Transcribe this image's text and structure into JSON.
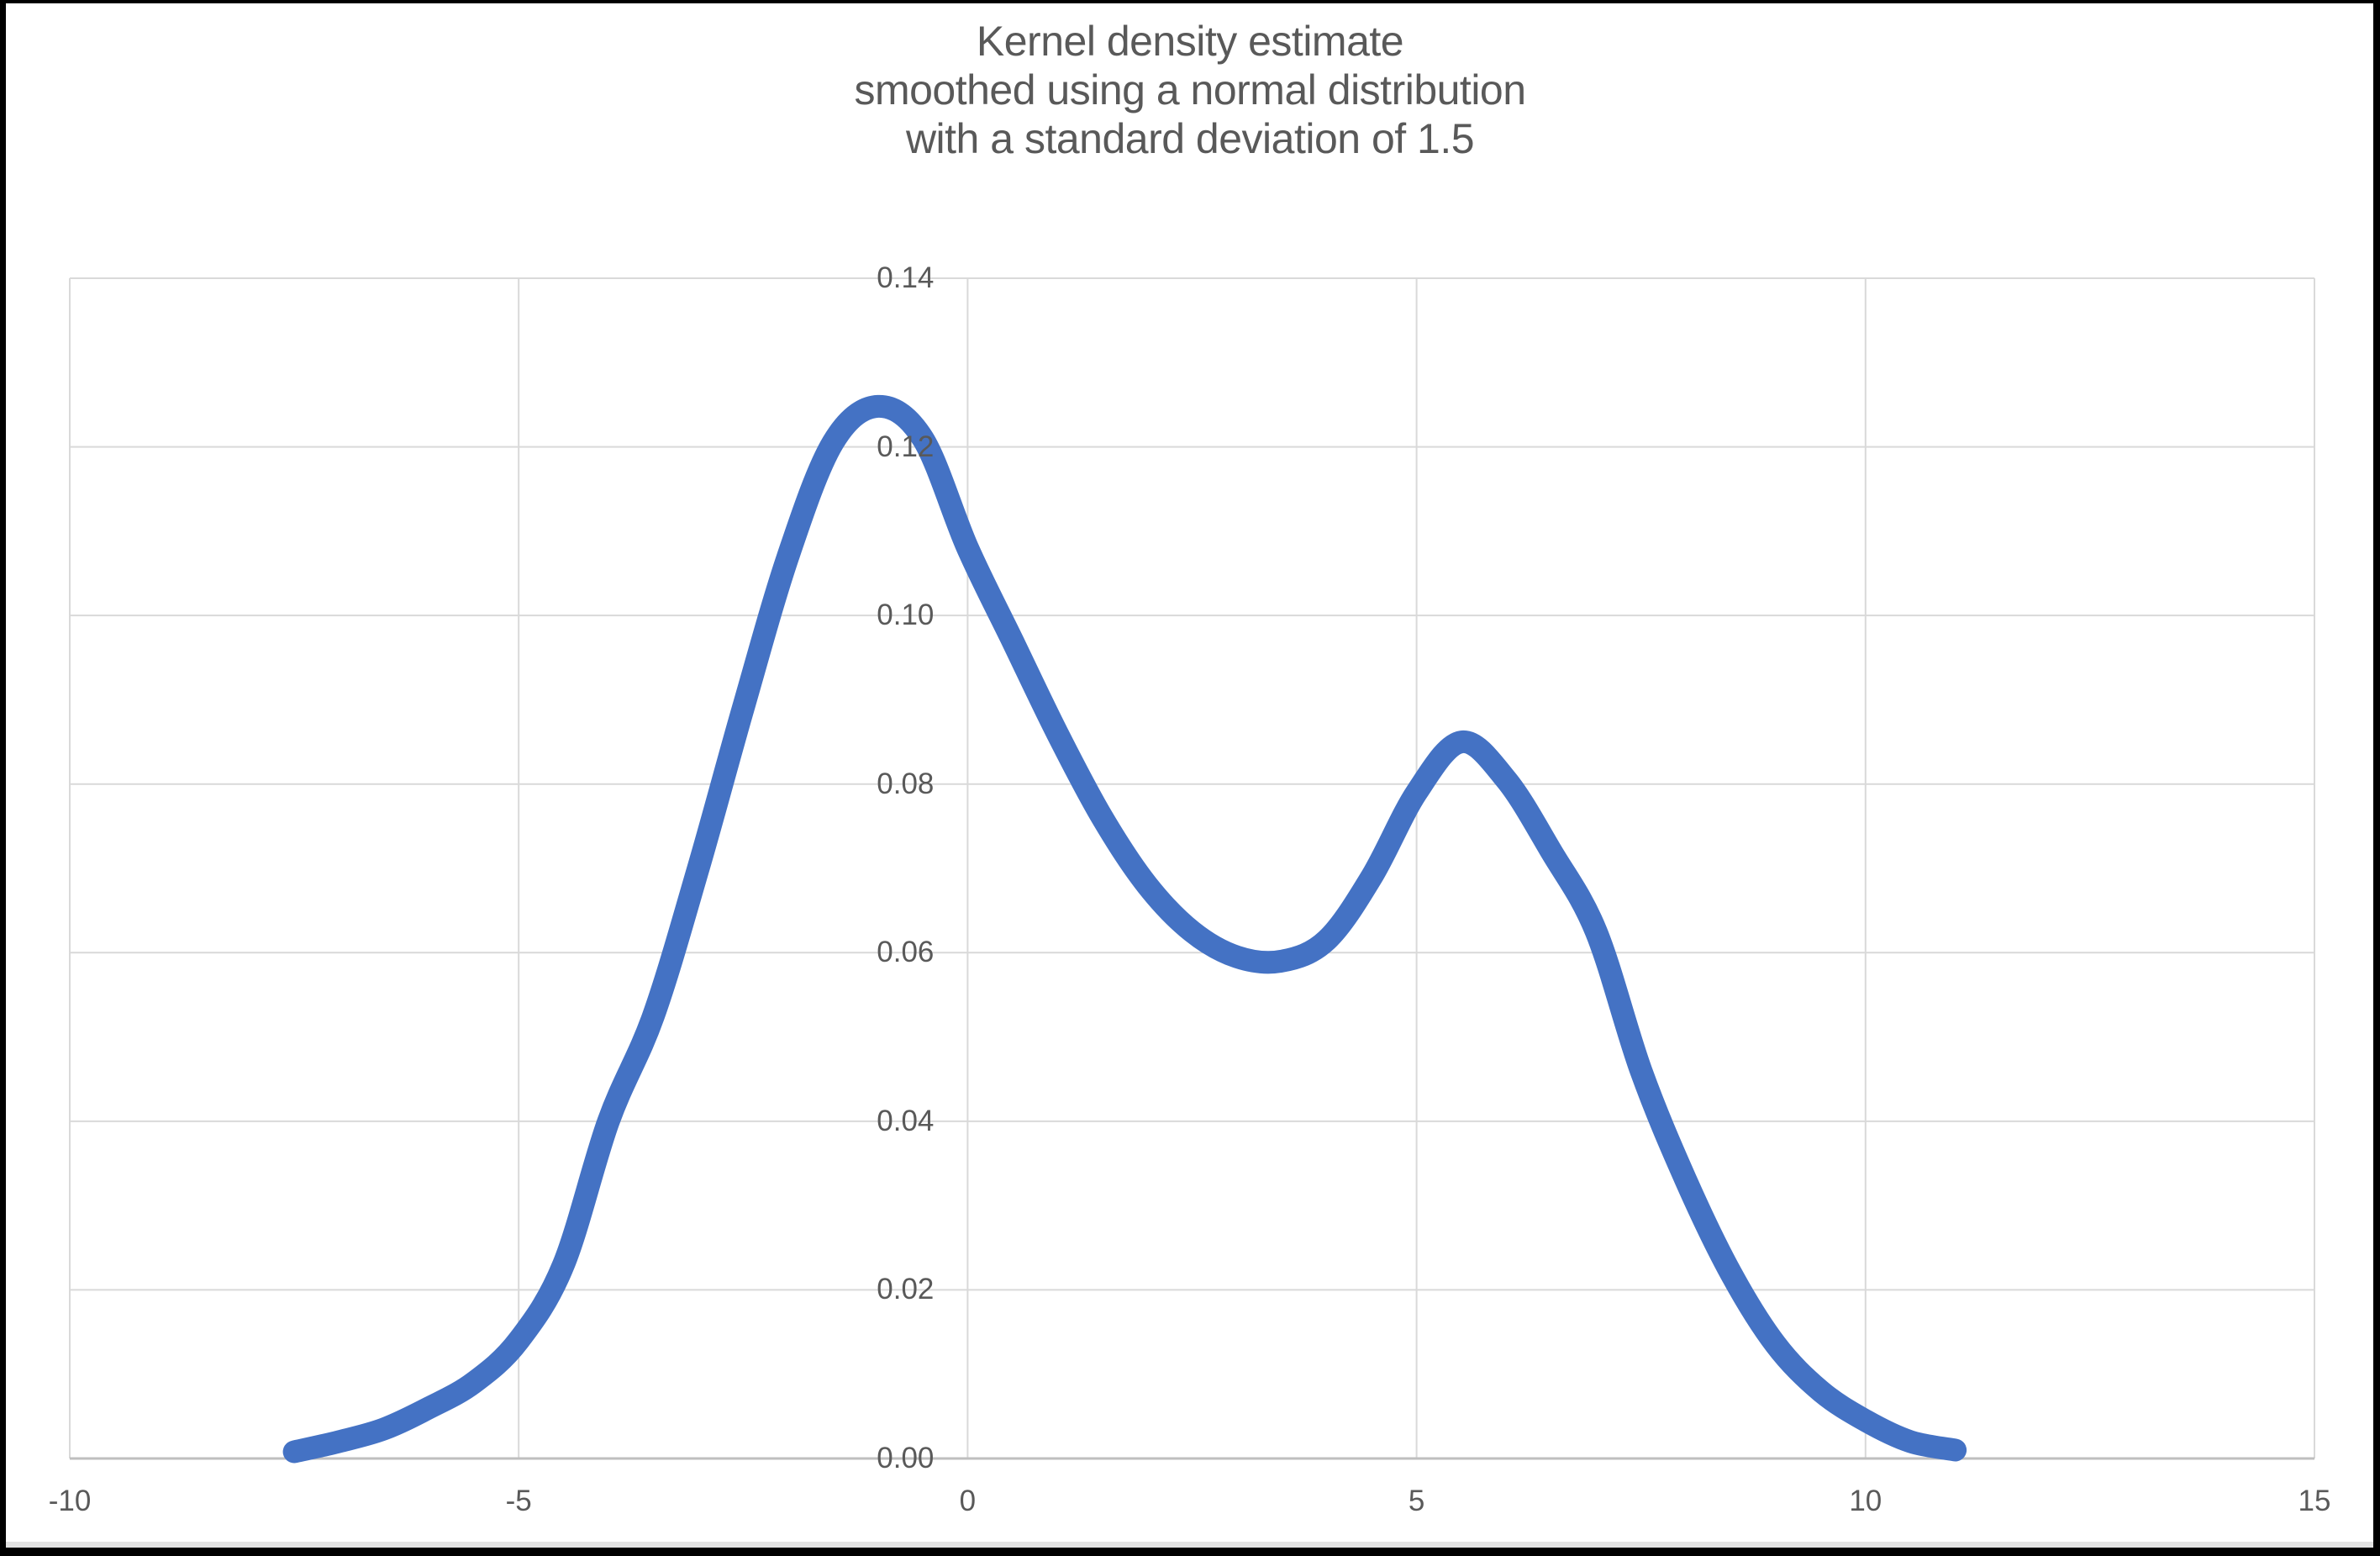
{
  "title": {
    "line1": "Kernel density estimate",
    "line2": "smoothed using a normal distribution",
    "line3": "with a standard deviation of 1.5"
  },
  "colors": {
    "line": "#4472C4",
    "gridline": "#D9D9D9",
    "axis_line": "#BFBFBF",
    "tick_text": "#595959",
    "title_text": "#595959",
    "frame": "#000000",
    "background": "#FFFFFF"
  },
  "chart_data": {
    "type": "line",
    "title": "Kernel density estimate smoothed using a normal distribution with a standard deviation of 1.5",
    "xlabel": "",
    "ylabel": "",
    "xlim": [
      -10,
      15
    ],
    "ylim": [
      0,
      0.14
    ],
    "grid": "on",
    "legend": "none",
    "x_ticks": [
      {
        "value": -10,
        "label": "-10"
      },
      {
        "value": -5,
        "label": "-5"
      },
      {
        "value": 0,
        "label": "0"
      },
      {
        "value": 5,
        "label": "5"
      },
      {
        "value": 10,
        "label": "10"
      },
      {
        "value": 15,
        "label": "15"
      }
    ],
    "y_ticks": [
      {
        "value": 0.0,
        "label": "0.00"
      },
      {
        "value": 0.02,
        "label": "0.02"
      },
      {
        "value": 0.04,
        "label": "0.04"
      },
      {
        "value": 0.06,
        "label": "0.06"
      },
      {
        "value": 0.08,
        "label": "0.08"
      },
      {
        "value": 0.1,
        "label": "0.10"
      },
      {
        "value": 0.12,
        "label": "0.12"
      },
      {
        "value": 0.14,
        "label": "0.14"
      }
    ],
    "series": [
      {
        "name": "Kernel density estimate",
        "x": [
          -7.5,
          -7.0,
          -6.5,
          -6.0,
          -5.5,
          -5.0,
          -4.5,
          -4.0,
          -3.5,
          -3.0,
          -2.5,
          -2.0,
          -1.5,
          -1.0,
          -0.5,
          0.0,
          0.5,
          1.0,
          1.5,
          2.0,
          2.5,
          3.0,
          3.5,
          4.0,
          4.5,
          5.0,
          5.5,
          6.0,
          6.5,
          7.0,
          7.5,
          8.0,
          8.5,
          9.0,
          9.5,
          10.0,
          10.5,
          11.0
        ],
        "y": [
          0.0008,
          0.002,
          0.0035,
          0.006,
          0.009,
          0.014,
          0.023,
          0.04,
          0.0525,
          0.07,
          0.089,
          0.107,
          0.1205,
          0.1248,
          0.121,
          0.108,
          0.097,
          0.086,
          0.076,
          0.068,
          0.0625,
          0.0595,
          0.059,
          0.0615,
          0.069,
          0.079,
          0.085,
          0.0805,
          0.072,
          0.0625,
          0.046,
          0.033,
          0.022,
          0.0135,
          0.008,
          0.0045,
          0.002,
          0.001
        ]
      }
    ],
    "annotations": {
      "peak1": {
        "x": -1.1,
        "y": 0.125
      },
      "valley": {
        "x": 3.3,
        "y": 0.059
      },
      "peak2": {
        "x": 5.5,
        "y": 0.085
      }
    }
  }
}
